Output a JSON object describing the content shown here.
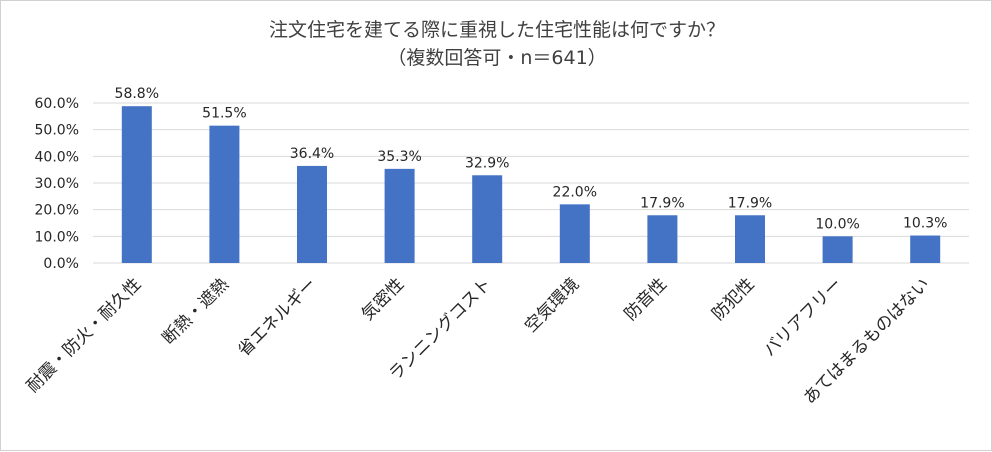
{
  "chart_data": {
    "type": "bar",
    "title": "注文住宅を建てる際に重視した住宅性能は何ですか？",
    "subtitle": "（複数回答可・n＝641）",
    "categories": [
      "耐震・防火・耐久性",
      "断熱・遮熱",
      "省エネルギー",
      "気密性",
      "ランニングコスト",
      "空気環境",
      "防音性",
      "防犯性",
      "バリアフリー",
      "あてはまるものはない"
    ],
    "values": [
      58.8,
      51.5,
      36.4,
      35.3,
      32.9,
      22.0,
      17.9,
      17.9,
      10.0,
      10.3
    ],
    "data_labels": [
      "58.8%",
      "51.5%",
      "36.4%",
      "35.3%",
      "32.9%",
      "22.0%",
      "17.9%",
      "17.9%",
      "10.0%",
      "10.3%"
    ],
    "y_ticks": [
      "0.0%",
      "10.0%",
      "20.0%",
      "30.0%",
      "40.0%",
      "50.0%",
      "60.0%"
    ],
    "ylim": [
      0,
      60
    ],
    "grid": true,
    "legend": "none",
    "bar_color": "#4472c4",
    "grid_color": "#d9d9d9"
  }
}
